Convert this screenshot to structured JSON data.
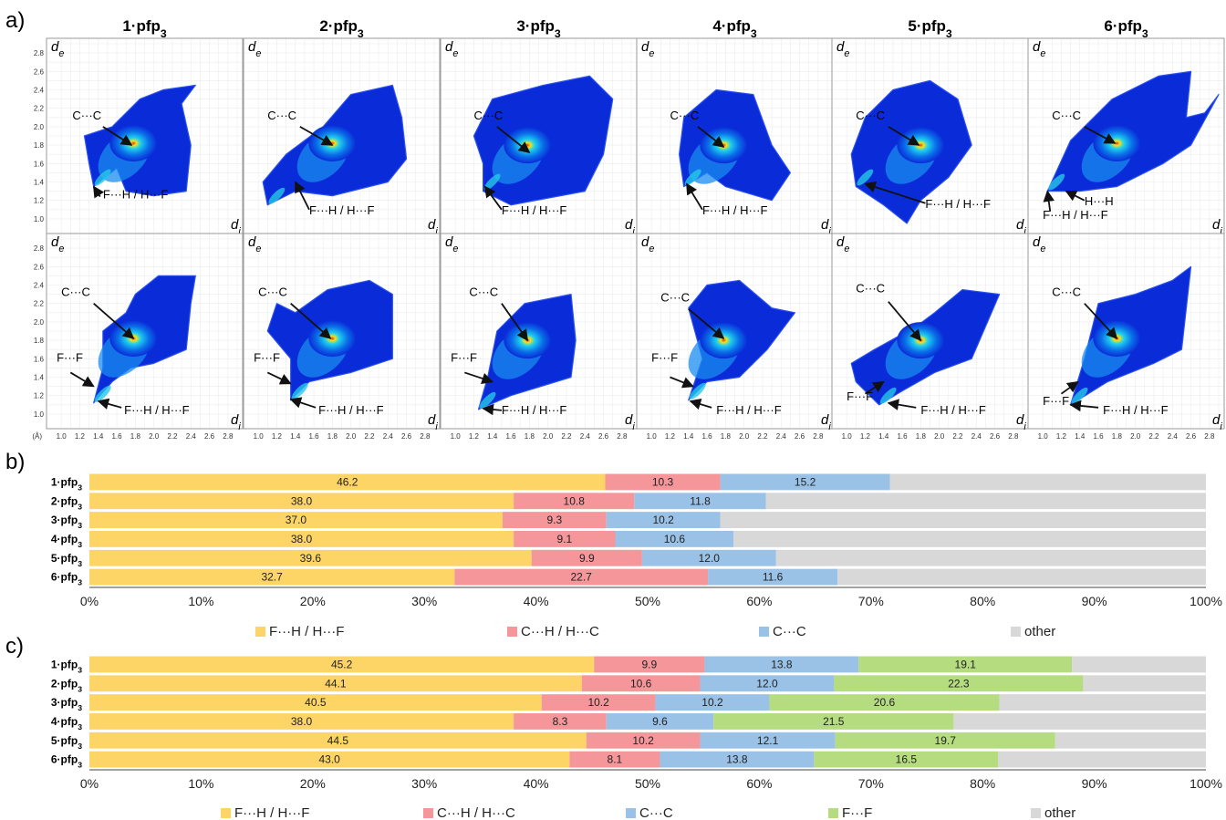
{
  "panel_labels": [
    "a)",
    "b)",
    "c)"
  ],
  "fingerprints": {
    "axis_unit": "(Å)",
    "x_axis_symbol": "d",
    "x_axis_subscript": "i",
    "y_axis_symbol": "d",
    "y_axis_subscript": "e",
    "x_ticks": [
      "1.0",
      "1.2",
      "1.4",
      "1.6",
      "1.8",
      "2.0",
      "2.2",
      "2.4",
      "2.6",
      "2.8"
    ],
    "y_ticks": [
      "2.8",
      "2.6",
      "2.4",
      "2.2",
      "2.0",
      "1.8",
      "1.6",
      "1.4",
      "1.2",
      "1.0"
    ],
    "columns": [
      {
        "num": "1",
        "rest": "·pfp",
        "sub": "3"
      },
      {
        "num": "2",
        "rest": "·pfp",
        "sub": "3"
      },
      {
        "num": "3",
        "rest": "·pfp",
        "sub": "3"
      },
      {
        "num": "4",
        "rest": "·pfp",
        "sub": "3"
      },
      {
        "num": "5",
        "rest": "·pfp",
        "sub": "3"
      },
      {
        "num": "6",
        "rest": "·pfp",
        "sub": "3"
      }
    ],
    "annotations": {
      "cc": "C···C",
      "fh": "F···H / H···F",
      "ff": "F···F",
      "hh": "H···H"
    },
    "colors": {
      "low": "#0a2bd8",
      "mid": "#1fd0ef",
      "high": "#f2e21b",
      "peak": "#e8361c"
    }
  },
  "chart_data": [
    {
      "type": "bar",
      "orientation": "horizontal",
      "stacked": true,
      "categories": [
        "1·pfp3",
        "2·pfp3",
        "3·pfp3",
        "4·pfp3",
        "5·pfp3",
        "6·pfp3"
      ],
      "series": [
        {
          "name": "F···H / H···F",
          "color": "#fdd466",
          "values": [
            46.2,
            38.0,
            37.0,
            38.0,
            39.6,
            32.7
          ]
        },
        {
          "name": "C···H / H···C",
          "color": "#f4969a",
          "values": [
            10.3,
            10.8,
            9.3,
            9.1,
            9.9,
            22.7
          ]
        },
        {
          "name": "C···C",
          "color": "#9ac1e6",
          "values": [
            15.2,
            11.8,
            10.2,
            10.6,
            12.0,
            11.6
          ]
        },
        {
          "name": "other",
          "color": "#d8d8d8",
          "values": [
            28.3,
            39.4,
            43.5,
            42.3,
            38.5,
            33.0
          ]
        }
      ],
      "x_ticks": [
        "0%",
        "10%",
        "20%",
        "30%",
        "40%",
        "50%",
        "60%",
        "70%",
        "80%",
        "90%",
        "100%"
      ],
      "xlim": [
        0,
        100
      ],
      "labelled_series": 3,
      "legend_position": "bottom"
    },
    {
      "type": "bar",
      "orientation": "horizontal",
      "stacked": true,
      "categories": [
        "1·pfp3",
        "2·pfp3",
        "3·pfp3",
        "4·pfp3",
        "5·pfp3",
        "6·pfp3"
      ],
      "series": [
        {
          "name": "F···H / H···F",
          "color": "#fdd466",
          "values": [
            45.2,
            44.1,
            40.5,
            38.0,
            44.5,
            43.0
          ]
        },
        {
          "name": "C···H / H···C",
          "color": "#f4969a",
          "values": [
            9.9,
            10.6,
            10.2,
            8.3,
            10.2,
            8.1
          ]
        },
        {
          "name": "C···C",
          "color": "#9ac1e6",
          "values": [
            13.8,
            12.0,
            10.2,
            9.6,
            12.1,
            13.8
          ]
        },
        {
          "name": "F···F",
          "color": "#b5dc7e",
          "values": [
            19.1,
            22.3,
            20.6,
            21.5,
            19.7,
            16.5
          ]
        },
        {
          "name": "other",
          "color": "#d8d8d8",
          "values": [
            12.0,
            11.0,
            18.5,
            22.6,
            13.5,
            18.6
          ]
        }
      ],
      "x_ticks": [
        "0%",
        "10%",
        "20%",
        "30%",
        "40%",
        "50%",
        "60%",
        "70%",
        "80%",
        "90%",
        "100%"
      ],
      "xlim": [
        0,
        100
      ],
      "labelled_series": 4,
      "legend_position": "bottom"
    }
  ]
}
